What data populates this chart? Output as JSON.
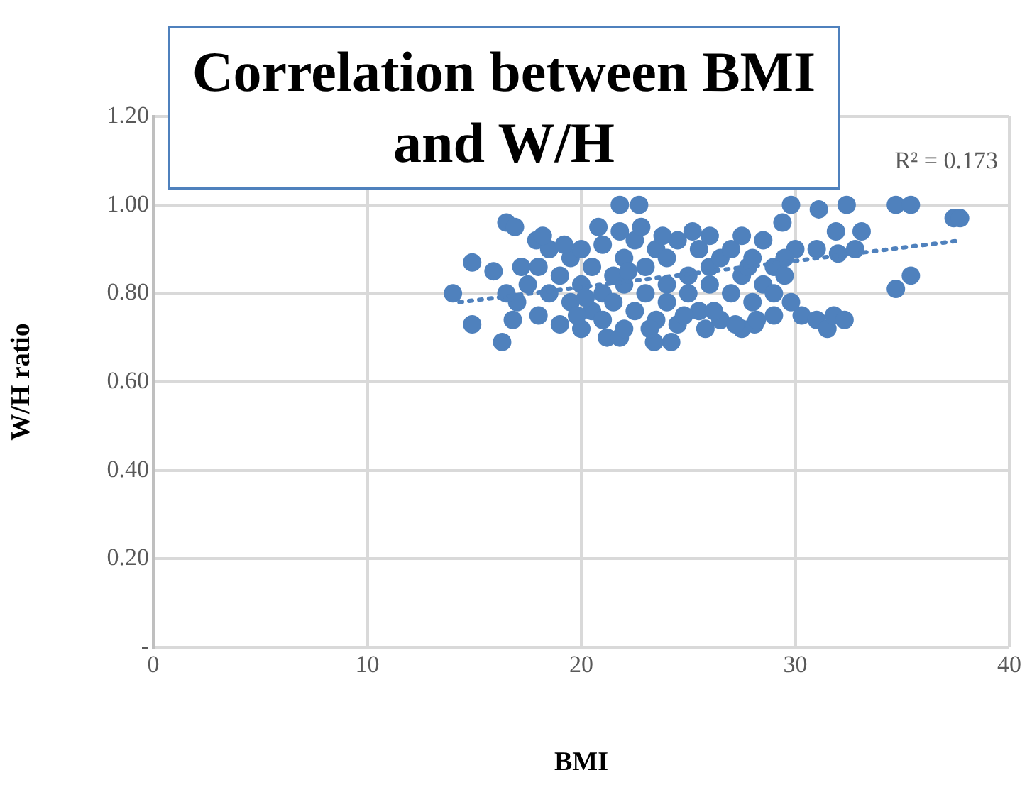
{
  "chart_data": {
    "type": "scatter",
    "title": "Correlation between BMI and W/H",
    "xlabel": "BMI",
    "ylabel": "W/H ratio",
    "xlim": [
      0,
      40
    ],
    "xticks": [
      0,
      10,
      20,
      30,
      40
    ],
    "ylim": [
      0,
      1.2
    ],
    "yticks": [
      {
        "value": 0,
        "label": "-"
      },
      {
        "value": 0.2,
        "label": "0.20"
      },
      {
        "value": 0.4,
        "label": "0.40"
      },
      {
        "value": 0.6,
        "label": "0.60"
      },
      {
        "value": 0.8,
        "label": "0.80"
      },
      {
        "value": 1.0,
        "label": "1.00"
      },
      {
        "value": 1.2,
        "label": "1.20"
      }
    ],
    "grid": true,
    "legend": false,
    "marker": "circle",
    "annotations": [
      "R² = 0.173"
    ],
    "series": [
      {
        "color": "#4f81bd",
        "x": [
          14.0,
          14.9,
          14.9,
          15.9,
          16.3,
          16.5,
          16.9,
          17.9,
          21.8,
          22.7,
          29.8,
          29.4,
          31.1,
          32.4,
          31.9,
          33.1,
          34.7,
          35.4,
          37.4,
          37.7,
          32.0,
          32.8,
          30.0,
          31.0,
          34.7,
          35.4,
          30.3,
          31.0,
          31.5,
          31.8,
          32.3,
          27.5,
          28.1,
          29.0,
          24.2,
          23.4,
          21.2,
          21.8,
          29.8,
          17,
          17.5,
          18,
          18,
          18.5,
          18.5,
          19,
          19,
          19.5,
          19.5,
          20,
          20,
          20,
          20.5,
          20.5,
          21,
          21,
          21,
          21.5,
          21.5,
          22,
          22,
          22,
          22.5,
          22.5,
          23,
          23,
          23.5,
          23.5,
          24,
          24,
          24,
          24.5,
          24.5,
          25,
          25,
          25.5,
          25.5,
          26,
          26,
          26,
          26.5,
          26.5,
          27,
          27,
          27.5,
          27.5,
          28,
          28,
          28.5,
          28.5,
          29,
          29,
          29.5,
          29.5,
          16.5,
          16.8,
          17.2,
          18.2,
          19.2,
          20.8,
          21.8,
          22.8,
          23.8,
          25.2,
          26.2,
          27.2,
          28.2,
          19.8,
          23.2,
          24.8,
          25.8,
          27.8,
          22.2,
          20.2
        ],
        "values": [
          0.8,
          0.87,
          0.73,
          0.85,
          0.69,
          0.96,
          0.95,
          0.92,
          1.0,
          1.0,
          1.0,
          0.96,
          0.99,
          1.0,
          0.94,
          0.94,
          1.0,
          1.0,
          0.97,
          0.97,
          0.89,
          0.9,
          0.9,
          0.9,
          0.81,
          0.84,
          0.75,
          0.74,
          0.72,
          0.75,
          0.74,
          0.72,
          0.73,
          0.75,
          0.69,
          0.69,
          0.7,
          0.7,
          0.78,
          0.78,
          0.82,
          0.75,
          0.86,
          0.8,
          0.9,
          0.73,
          0.84,
          0.78,
          0.88,
          0.72,
          0.82,
          0.9,
          0.76,
          0.86,
          0.8,
          0.74,
          0.91,
          0.84,
          0.78,
          0.72,
          0.88,
          0.82,
          0.76,
          0.92,
          0.8,
          0.86,
          0.74,
          0.9,
          0.82,
          0.78,
          0.88,
          0.73,
          0.92,
          0.84,
          0.8,
          0.76,
          0.9,
          0.86,
          0.82,
          0.93,
          0.74,
          0.88,
          0.8,
          0.9,
          0.84,
          0.93,
          0.78,
          0.88,
          0.82,
          0.92,
          0.86,
          0.8,
          0.84,
          0.88,
          0.8,
          0.74,
          0.86,
          0.93,
          0.91,
          0.95,
          0.94,
          0.95,
          0.93,
          0.94,
          0.76,
          0.73,
          0.74,
          0.75,
          0.72,
          0.75,
          0.72,
          0.86,
          0.85,
          0.79
        ]
      },
      {
        "type": "line",
        "color": "#4f81bd",
        "line_style": "dotted",
        "marker": "none",
        "x": [
          14.3,
          37.8
        ],
        "values": [
          0.78,
          0.92
        ]
      }
    ]
  }
}
